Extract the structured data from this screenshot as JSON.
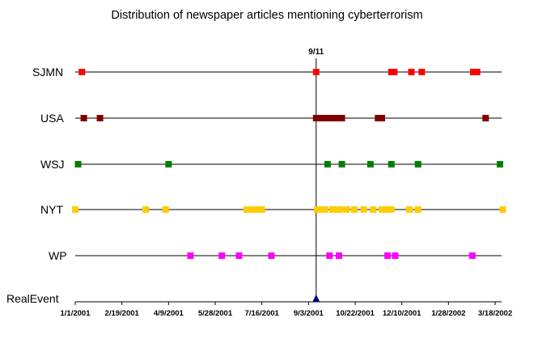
{
  "chart_data": {
    "type": "scatter",
    "title": "Distribution of newspaper articles mentioning cyberterrorism",
    "xlim": [
      "2001-01-01",
      "2002-03-18"
    ],
    "x_ticks": [
      "1/1/2001",
      "2/19/2001",
      "4/9/2001",
      "5/28/2001",
      "7/16/2001",
      "9/3/2001",
      "10/22/2001",
      "12/10/2001",
      "1/28/2002",
      "3/18/2002"
    ],
    "event_label": "9/11",
    "event_date": "2001-09-11",
    "grid": false,
    "legend": "none",
    "series": [
      {
        "name": "SJMN",
        "color": "#ff0000",
        "dates": [
          "2001-01-08",
          "2001-09-11",
          "2001-11-29",
          "2001-12-02",
          "2001-12-20",
          "2001-12-31",
          "2002-02-23",
          "2002-02-27"
        ]
      },
      {
        "name": "USA",
        "color": "#800000",
        "dates": [
          "2001-01-10",
          "2001-01-27",
          "2001-09-11",
          "2001-09-14",
          "2001-09-17",
          "2001-09-20",
          "2001-09-23",
          "2001-09-26",
          "2001-09-29",
          "2001-10-02",
          "2001-10-05",
          "2001-10-08",
          "2001-11-15",
          "2001-11-19",
          "2002-03-08"
        ]
      },
      {
        "name": "WSJ",
        "color": "#008000",
        "dates": [
          "2001-01-04",
          "2001-04-09",
          "2001-09-23",
          "2001-10-08",
          "2001-11-07",
          "2001-11-29",
          "2001-12-27",
          "2002-03-23"
        ]
      },
      {
        "name": "NYT",
        "color": "#ffcc00",
        "dates": [
          "2001-01-01",
          "2001-03-16",
          "2001-04-06",
          "2001-06-30",
          "2001-07-07",
          "2001-07-12",
          "2001-07-16",
          "2001-09-12",
          "2001-09-16",
          "2001-09-20",
          "2001-09-28",
          "2001-10-02",
          "2001-10-06",
          "2001-10-13",
          "2001-10-21",
          "2001-10-31",
          "2001-11-10",
          "2001-11-19",
          "2001-11-25",
          "2001-11-29",
          "2001-12-18",
          "2001-12-27",
          "2002-03-26"
        ]
      },
      {
        "name": "WP",
        "color": "#ff00ff",
        "dates": [
          "2001-05-02",
          "2001-06-04",
          "2001-06-22",
          "2001-07-26",
          "2001-09-25",
          "2001-10-05",
          "2001-11-25",
          "2001-12-03",
          "2002-02-22"
        ]
      },
      {
        "name": "RealEvent",
        "color": "#000080",
        "marker": "triangle",
        "dates": [
          "2001-09-11"
        ]
      }
    ]
  }
}
